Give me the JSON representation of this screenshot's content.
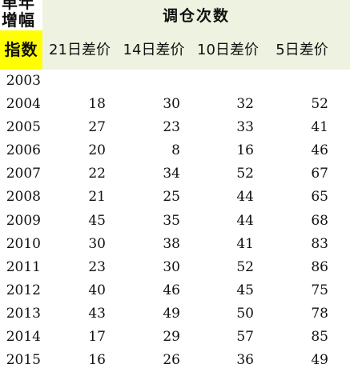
{
  "header": {
    "corner_line1": "单年",
    "corner_line2": "增幅",
    "index_label": "指数",
    "group_title": "调仓次数",
    "columns": [
      "21日差价",
      "14日差价",
      "10日差价",
      "5日差价"
    ]
  },
  "colors": {
    "header_band": "#eef3e1",
    "index_highlight": "#ffff00"
  },
  "rows": [
    {
      "year": "2003",
      "d21": "",
      "d14": "",
      "d10": "",
      "d5": ""
    },
    {
      "year": "2004",
      "d21": "18",
      "d14": "30",
      "d10": "32",
      "d5": "52"
    },
    {
      "year": "2005",
      "d21": "27",
      "d14": "23",
      "d10": "33",
      "d5": "41"
    },
    {
      "year": "2006",
      "d21": "20",
      "d14": "8",
      "d10": "16",
      "d5": "46"
    },
    {
      "year": "2007",
      "d21": "22",
      "d14": "34",
      "d10": "52",
      "d5": "67"
    },
    {
      "year": "2008",
      "d21": "21",
      "d14": "25",
      "d10": "44",
      "d5": "65"
    },
    {
      "year": "2009",
      "d21": "45",
      "d14": "35",
      "d10": "44",
      "d5": "68"
    },
    {
      "year": "2010",
      "d21": "30",
      "d14": "38",
      "d10": "41",
      "d5": "83"
    },
    {
      "year": "2011",
      "d21": "23",
      "d14": "30",
      "d10": "52",
      "d5": "86"
    },
    {
      "year": "2012",
      "d21": "40",
      "d14": "46",
      "d10": "45",
      "d5": "75"
    },
    {
      "year": "2013",
      "d21": "43",
      "d14": "49",
      "d10": "50",
      "d5": "78"
    },
    {
      "year": "2014",
      "d21": "17",
      "d14": "29",
      "d10": "57",
      "d5": "85"
    },
    {
      "year": "2015",
      "d21": "16",
      "d14": "26",
      "d10": "36",
      "d5": "49"
    }
  ]
}
